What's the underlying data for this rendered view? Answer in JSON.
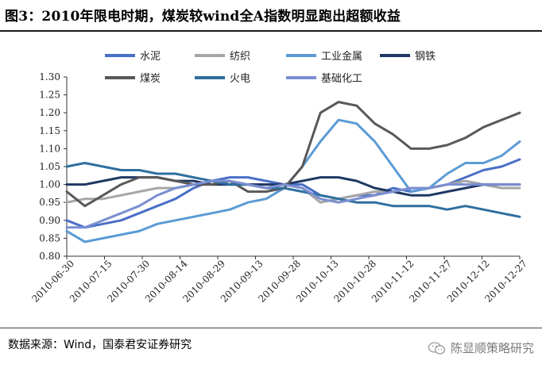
{
  "title": "图3：2010年限电时期，煤炭较wind全A指数明显跑出超额收益",
  "source": "数据来源：Wind，国泰君安证券研究",
  "watermark": "陈显顺策略研究",
  "chart_data": {
    "type": "line",
    "title": "图3：2010年限电时期，煤炭较wind全A指数明显跑出超额收益",
    "xlabel": "",
    "ylabel": "",
    "ylim": [
      0.8,
      1.3
    ],
    "yticks": [
      "0.80",
      "0.85",
      "0.90",
      "0.95",
      "1.00",
      "1.05",
      "1.10",
      "1.15",
      "1.20",
      "1.25",
      "1.30"
    ],
    "xticks": [
      "2010-06-30",
      "2010-07-15",
      "2010-07-30",
      "2010-08-14",
      "2010-08-29",
      "2010-09-13",
      "2010-09-28",
      "2010-10-13",
      "2010-10-28",
      "2010-11-12",
      "2010-11-27",
      "2010-12-12",
      "2010-12-27"
    ],
    "x": [
      "2010-06-30",
      "2010-07-07",
      "2010-07-15",
      "2010-07-22",
      "2010-07-30",
      "2010-08-06",
      "2010-08-14",
      "2010-08-21",
      "2010-08-29",
      "2010-09-06",
      "2010-09-13",
      "2010-09-20",
      "2010-09-28",
      "2010-10-06",
      "2010-10-13",
      "2010-10-20",
      "2010-10-28",
      "2010-11-04",
      "2010-11-12",
      "2010-11-19",
      "2010-11-27",
      "2010-12-04",
      "2010-12-12",
      "2010-12-19",
      "2010-12-27",
      "2010-12-31"
    ],
    "grid": false,
    "legend": "top",
    "series": [
      {
        "name": "水泥",
        "color": "#4a6fc7",
        "width": 3,
        "values": [
          0.9,
          0.88,
          0.89,
          0.9,
          0.92,
          0.94,
          0.96,
          0.99,
          1.01,
          1.02,
          1.02,
          1.01,
          1.0,
          1.0,
          0.97,
          0.96,
          0.97,
          0.97,
          0.99,
          0.98,
          0.99,
          1.0,
          1.02,
          1.04,
          1.05,
          1.07
        ]
      },
      {
        "name": "纺织",
        "color": "#a6a6a6",
        "width": 3,
        "values": [
          0.95,
          0.96,
          0.96,
          0.97,
          0.98,
          0.99,
          0.99,
          1.0,
          1.0,
          1.0,
          1.0,
          1.0,
          1.0,
          0.99,
          0.95,
          0.96,
          0.97,
          0.98,
          0.98,
          0.99,
          0.99,
          1.0,
          1.01,
          1.0,
          0.99,
          0.99
        ]
      },
      {
        "name": "工业金属",
        "color": "#5b9bd5",
        "width": 3,
        "values": [
          0.87,
          0.84,
          0.85,
          0.86,
          0.87,
          0.89,
          0.9,
          0.91,
          0.92,
          0.93,
          0.95,
          0.96,
          0.99,
          1.05,
          1.12,
          1.18,
          1.17,
          1.12,
          1.05,
          0.98,
          0.99,
          1.03,
          1.06,
          1.06,
          1.08,
          1.12
        ]
      },
      {
        "name": "钢铁",
        "color": "#1f3864",
        "width": 3,
        "values": [
          1.0,
          1.0,
          1.01,
          1.02,
          1.02,
          1.02,
          1.01,
          1.01,
          1.0,
          1.0,
          1.0,
          1.0,
          1.0,
          1.01,
          1.02,
          1.02,
          1.01,
          0.99,
          0.98,
          0.97,
          0.97,
          0.98,
          0.99,
          1.0,
          1.0,
          1.0
        ]
      },
      {
        "name": "煤炭",
        "color": "#595959",
        "width": 3,
        "values": [
          0.98,
          0.94,
          0.97,
          1.0,
          1.02,
          1.02,
          1.01,
          1.0,
          1.0,
          1.01,
          0.98,
          0.98,
          0.99,
          1.05,
          1.2,
          1.23,
          1.22,
          1.17,
          1.14,
          1.1,
          1.1,
          1.11,
          1.13,
          1.16,
          1.18,
          1.2
        ]
      },
      {
        "name": "火电",
        "color": "#2f6f9f",
        "width": 3,
        "values": [
          1.05,
          1.06,
          1.05,
          1.04,
          1.04,
          1.03,
          1.03,
          1.02,
          1.01,
          1.0,
          1.0,
          0.99,
          0.99,
          0.98,
          0.97,
          0.96,
          0.95,
          0.95,
          0.94,
          0.94,
          0.94,
          0.93,
          0.94,
          0.93,
          0.92,
          0.91
        ]
      },
      {
        "name": "基础化工",
        "color": "#7b8fd1",
        "width": 3,
        "values": [
          0.88,
          0.88,
          0.9,
          0.92,
          0.94,
          0.97,
          0.99,
          1.0,
          1.01,
          1.01,
          1.0,
          0.99,
          1.0,
          0.99,
          0.96,
          0.95,
          0.96,
          0.97,
          0.98,
          0.99,
          0.99,
          1.0,
          1.0,
          1.0,
          1.0,
          1.0
        ]
      }
    ]
  }
}
